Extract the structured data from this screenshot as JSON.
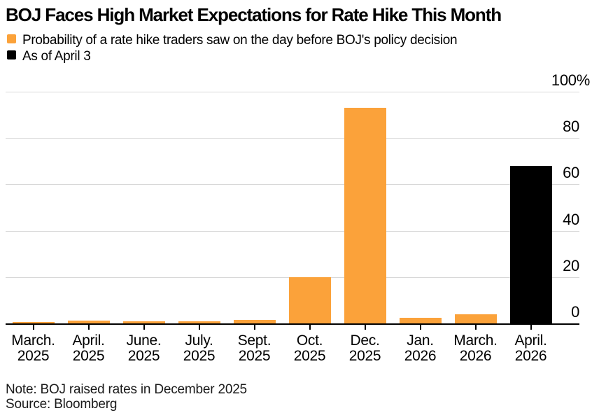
{
  "title": "BOJ Faces High Market Expectations for Rate Hike This Month",
  "legend": [
    {
      "label": "Probability of a rate hike traders saw on the day before BOJ's policy decision",
      "color_key": "orange"
    },
    {
      "label": "As of April 3",
      "color_key": "black"
    }
  ],
  "note": "Note: BOJ raised rates in December 2025",
  "source": "Source: Bloomberg",
  "colors": {
    "orange": "#FBA23A",
    "black": "#000000",
    "grid": "#D8D8D8",
    "axis": "#000000",
    "text": "#000000",
    "background": "#FFFFFF"
  },
  "chart_data": {
    "type": "bar",
    "title": "BOJ Faces High Market Expectations for Rate Hike This Month",
    "categories": [
      [
        "March.",
        "2025"
      ],
      [
        "April.",
        "2025"
      ],
      [
        "June.",
        "2025"
      ],
      [
        "July.",
        "2025"
      ],
      [
        "Sept.",
        "2025"
      ],
      [
        "Oct.",
        "2025"
      ],
      [
        "Dec.",
        "2025"
      ],
      [
        "Jan.",
        "2026"
      ],
      [
        "March.",
        "2026"
      ],
      [
        "April.",
        "2026"
      ]
    ],
    "series": [
      {
        "name": "Probability of a rate hike traders saw on the day before BOJ's policy decision",
        "values": [
          0.7,
          1.3,
          0.9,
          0.9,
          1.5,
          20,
          93,
          2.3,
          4,
          68
        ],
        "bar_color_keys": [
          "orange",
          "orange",
          "orange",
          "orange",
          "orange",
          "orange",
          "orange",
          "orange",
          "orange",
          "black"
        ]
      }
    ],
    "xlabel": "",
    "ylabel": "",
    "ylim": [
      0,
      100
    ],
    "yticks": [
      0,
      20,
      40,
      60,
      80,
      100
    ],
    "ytick_labels": [
      "0",
      "20",
      "40",
      "60",
      "80",
      "100%"
    ],
    "grid": "horizontal",
    "yaxis_side": "right",
    "legend_position": "top-left"
  }
}
